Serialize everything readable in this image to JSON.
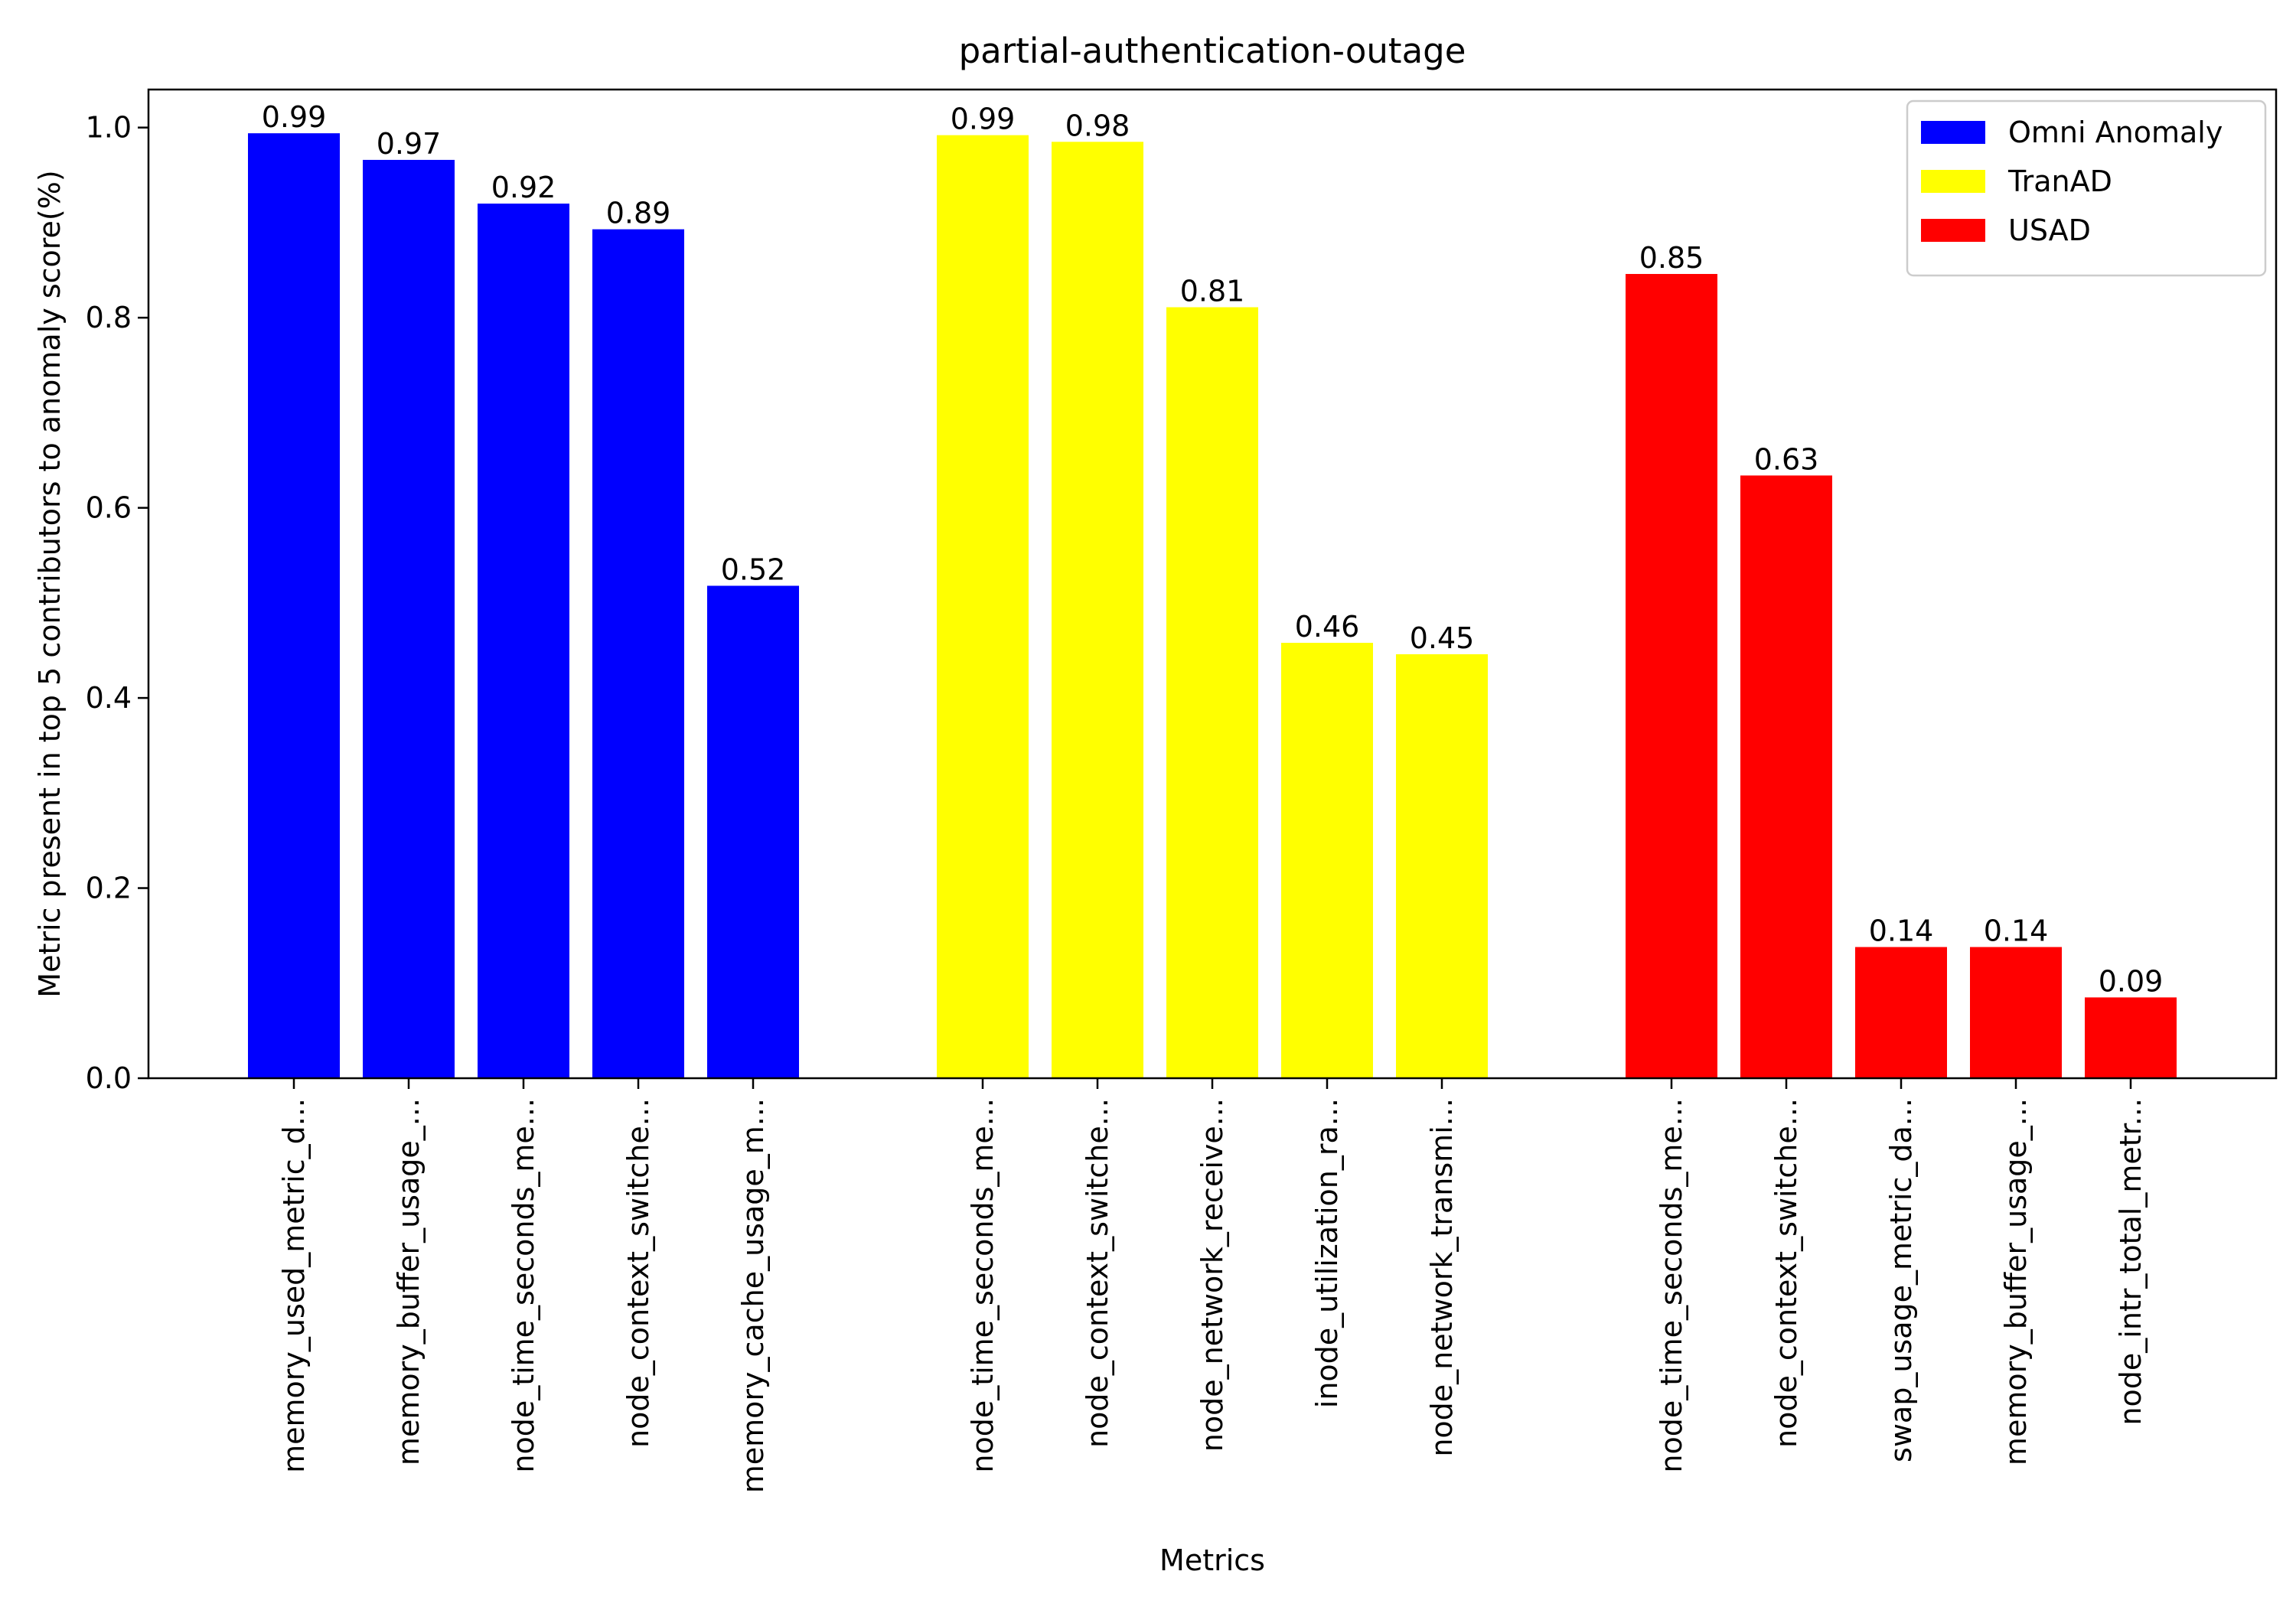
{
  "chart_data": {
    "type": "bar",
    "title": "partial-authentication-outage",
    "xlabel": "Metrics",
    "ylabel": "Metric present in top 5 contributors to anomaly score(%)",
    "ylim": [
      0,
      1.04
    ],
    "yticks": [
      "0.0",
      "0.2",
      "0.4",
      "0.6",
      "0.8",
      "1.0"
    ],
    "grid": false,
    "legend_position": "top-right",
    "series": [
      {
        "name": "Omni Anomaly",
        "color": "#0000ff",
        "categories": [
          "memory_used_metric_d...",
          "memory_buffer_usage_...",
          "node_time_seconds_me...",
          "node_context_switche...",
          "memory_cache_usage_m..."
        ],
        "values": [
          0.994,
          0.966,
          0.92,
          0.893,
          0.518
        ],
        "labels": [
          "0.99",
          "0.97",
          "0.92",
          "0.89",
          "0.52"
        ]
      },
      {
        "name": "TranAD",
        "color": "#ffff00",
        "categories": [
          "node_time_seconds_me...",
          "node_context_switche...",
          "node_network_receive...",
          "inode_utilization_ra...",
          "node_network_transmi..."
        ],
        "values": [
          0.992,
          0.985,
          0.811,
          0.458,
          0.446
        ],
        "labels": [
          "0.99",
          "0.98",
          "0.81",
          "0.46",
          "0.45"
        ]
      },
      {
        "name": "USAD",
        "color": "#ff0000",
        "categories": [
          "node_time_seconds_me...",
          "node_context_switche...",
          "swap_usage_metric_da...",
          "memory_buffer_usage_...",
          "node_intr_total_metr..."
        ],
        "values": [
          0.846,
          0.634,
          0.138,
          0.138,
          0.085
        ],
        "labels": [
          "0.85",
          "0.63",
          "0.14",
          "0.14",
          "0.09"
        ]
      }
    ]
  }
}
